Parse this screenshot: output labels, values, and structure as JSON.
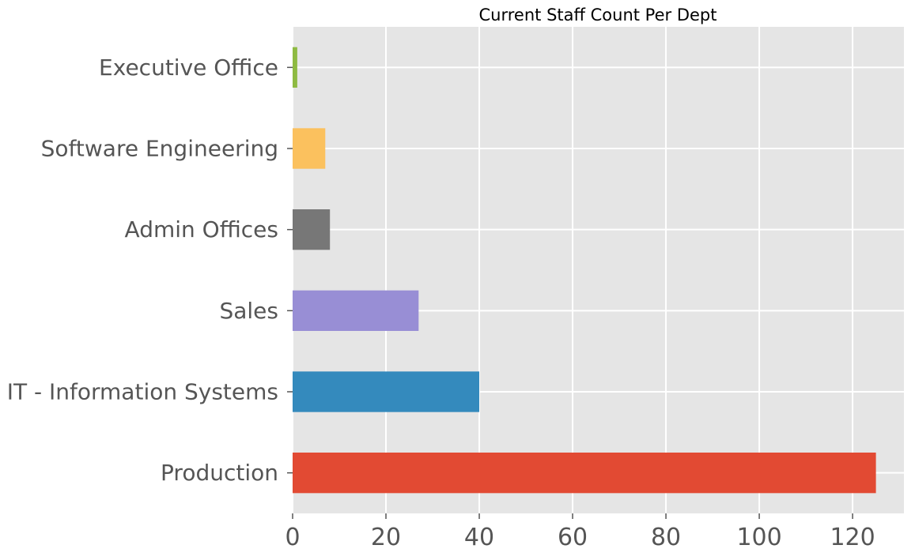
{
  "chart_data": {
    "type": "bar",
    "orientation": "horizontal",
    "title": "Current Staff Count Per Dept",
    "xlabel": "",
    "ylabel": "",
    "categories": [
      "Production",
      "IT - Information Systems",
      "Sales",
      "Admin Offices",
      "Software Engineering",
      "Executive Office"
    ],
    "values": [
      125,
      40,
      27,
      8,
      7,
      1
    ],
    "colors": [
      "#E24A33",
      "#348ABD",
      "#988ED5",
      "#777777",
      "#FBC15E",
      "#8EBA42"
    ],
    "xlim": [
      0,
      131
    ],
    "xticks": [
      0,
      20,
      40,
      60,
      80,
      100,
      120
    ],
    "xtick_labels": [
      "0",
      "20",
      "40",
      "60",
      "80",
      "100",
      "120"
    ],
    "grid": true,
    "background": "#E5E5E5",
    "grid_color": "#FFFFFF",
    "legend": "none"
  }
}
